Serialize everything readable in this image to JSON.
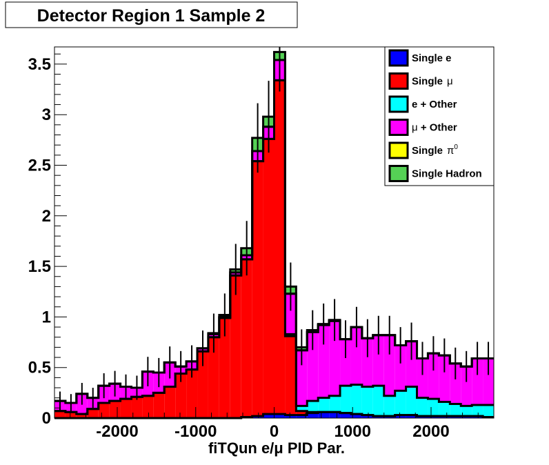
{
  "chart_data": {
    "type": "bar",
    "title": "Detector Region 1 Sample 2",
    "xlabel": "fiTQun e/μ PID Par.",
    "ylabel": "",
    "stacked": true,
    "xlim": [
      -2800,
      2800
    ],
    "ylim": [
      0,
      3.67
    ],
    "bin_width": 140,
    "x_ticks": [
      {
        "value": -2000,
        "label": "-2000"
      },
      {
        "value": -1000,
        "label": "-1000"
      },
      {
        "value": 0,
        "label": "0"
      },
      {
        "value": 1000,
        "label": "1000"
      },
      {
        "value": 2000,
        "label": "2000"
      }
    ],
    "y_ticks": [
      {
        "value": 0,
        "label": "0"
      },
      {
        "value": 0.5,
        "label": "0.5"
      },
      {
        "value": 1,
        "label": "1"
      },
      {
        "value": 1.5,
        "label": "1.5"
      },
      {
        "value": 2,
        "label": "2"
      },
      {
        "value": 2.5,
        "label": "2.5"
      },
      {
        "value": 3,
        "label": "3"
      },
      {
        "value": 3.5,
        "label": "3.5"
      }
    ],
    "bin_edges": [
      -2800,
      -2660,
      -2520,
      -2380,
      -2240,
      -2100,
      -1960,
      -1820,
      -1680,
      -1540,
      -1400,
      -1260,
      -1120,
      -980,
      -840,
      -700,
      -560,
      -420,
      -280,
      -140,
      0,
      140,
      280,
      420,
      560,
      700,
      840,
      980,
      1120,
      1260,
      1400,
      1540,
      1680,
      1820,
      1960,
      2100,
      2240,
      2380,
      2520,
      2660,
      2800
    ],
    "series": [
      {
        "name": "Single e",
        "color": "#0000ff",
        "label_text": "Single e",
        "values": [
          0,
          0,
          0,
          0,
          0,
          0,
          0,
          0,
          0,
          0,
          0,
          0,
          0,
          0,
          0,
          0,
          0,
          0.01,
          0.02,
          0.04,
          0.04,
          0.03,
          0.03,
          0.05,
          0.06,
          0.06,
          0.05,
          0.04,
          0.03,
          0.02,
          0.02,
          0.03,
          0.03,
          0.02,
          0.02,
          0.02,
          0.02,
          0.02,
          0.02,
          0.01
        ]
      },
      {
        "name": "Single μ",
        "color": "#ff0000",
        "label_text": "Single",
        "label_symbol": "μ",
        "label_sup": "",
        "values": [
          0.07,
          0.06,
          0.04,
          0.09,
          0.15,
          0.17,
          0.19,
          0.21,
          0.22,
          0.25,
          0.31,
          0.44,
          0.48,
          0.66,
          0.8,
          0.99,
          1.41,
          1.56,
          2.52,
          2.72,
          3.3,
          0.78,
          0.04,
          0.01,
          0,
          0,
          0,
          0,
          0,
          0,
          0,
          0,
          0,
          0,
          0,
          0,
          0,
          0,
          0,
          0
        ]
      },
      {
        "name": "e + Other",
        "color": "#00ffff",
        "label_text": "e + Other",
        "values": [
          0,
          0,
          0,
          0,
          0,
          0,
          0,
          0,
          0,
          0,
          0,
          0,
          0,
          0,
          0,
          0,
          0,
          0,
          0,
          0,
          0,
          0.02,
          0.05,
          0.11,
          0.14,
          0.16,
          0.27,
          0.29,
          0.28,
          0.3,
          0.2,
          0.24,
          0.28,
          0.18,
          0.17,
          0.14,
          0.12,
          0.1,
          0.11,
          0.12
        ]
      },
      {
        "name": "μ + Other",
        "color": "#ff00ff",
        "label_text": "",
        "label_symbol": "μ",
        "label_after": " + Other",
        "values": [
          0.1,
          0.09,
          0.2,
          0.11,
          0.17,
          0.17,
          0.12,
          0.09,
          0.24,
          0.2,
          0.24,
          0.07,
          0.08,
          0.03,
          0.03,
          0.01,
          0.03,
          0.04,
          0.1,
          0.12,
          0.2,
          0.4,
          0.55,
          0.68,
          0.72,
          0.74,
          0.46,
          0.57,
          0.48,
          0.5,
          0.6,
          0.45,
          0.45,
          0.39,
          0.45,
          0.46,
          0.4,
          0.39,
          0.46,
          0.46
        ]
      },
      {
        "name": "Single π0",
        "color": "#ffff00",
        "label_text": "Single",
        "label_symbol": "π",
        "label_sup": "0",
        "values": [
          0,
          0,
          0,
          0,
          0,
          0,
          0,
          0,
          0,
          0,
          0,
          0,
          0,
          0,
          0,
          0,
          0,
          0,
          0,
          0,
          0,
          0,
          0,
          0,
          0,
          0,
          0,
          0,
          0,
          0,
          0,
          0,
          0,
          0,
          0,
          0,
          0,
          0,
          0,
          0
        ]
      },
      {
        "name": "Single Hadron",
        "color": "#55d155",
        "label_text": "Single Hadron",
        "values": [
          0,
          0,
          0,
          0,
          0,
          0,
          0,
          0,
          0,
          0,
          0,
          0,
          0,
          0,
          0.01,
          0.02,
          0.03,
          0.07,
          0.13,
          0.1,
          0.08,
          0.07,
          0.03,
          0.02,
          0.01,
          0.01,
          0,
          0,
          0,
          0,
          0,
          0,
          0,
          0,
          0,
          0,
          0,
          0,
          0,
          0
        ]
      }
    ],
    "error_bars_on_total": true,
    "legend_position": "top-right",
    "grid": false
  }
}
